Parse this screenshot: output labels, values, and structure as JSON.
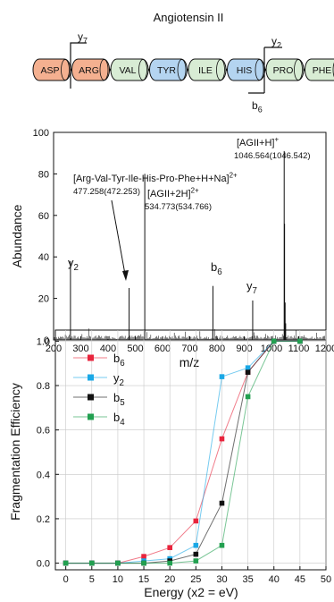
{
  "peptide": {
    "title": "Angiotensin II",
    "residues": [
      {
        "label": "ASP",
        "color": "#f4b090"
      },
      {
        "label": "ARG",
        "color": "#f4b090"
      },
      {
        "label": "VAL",
        "color": "#d8ecd4"
      },
      {
        "label": "TYR",
        "color": "#b4d4f0"
      },
      {
        "label": "ILE",
        "color": "#d8ecd4"
      },
      {
        "label": "HIS",
        "color": "#b4d4f0"
      },
      {
        "label": "PRO",
        "color": "#d8ecd4"
      },
      {
        "label": "PHE",
        "color": "#d8ecd4"
      }
    ],
    "fragments": [
      {
        "label": "y",
        "sub": "7"
      },
      {
        "label": "y",
        "sub": "2"
      },
      {
        "label": "b",
        "sub": "6"
      }
    ]
  },
  "chart_data": [
    {
      "type": "bar",
      "xlabel": "m/z",
      "ylabel": "Abundance",
      "xlim": [
        200,
        1200
      ],
      "ylim": [
        0,
        100
      ],
      "xticks": [
        200,
        300,
        400,
        500,
        600,
        700,
        800,
        900,
        1000,
        1100,
        1200
      ],
      "yticks": [
        0,
        20,
        40,
        60,
        80,
        100
      ],
      "peaks": [
        {
          "mz": 262,
          "abundance": 38
        },
        {
          "mz": 477.3,
          "abundance": 25
        },
        {
          "mz": 534.8,
          "abundance": 80
        },
        {
          "mz": 785,
          "abundance": 26
        },
        {
          "mz": 931,
          "abundance": 19
        },
        {
          "mz": 1046.6,
          "abundance": 91
        },
        {
          "mz": 1048,
          "abundance": 56
        },
        {
          "mz": 1050,
          "abundance": 18
        },
        {
          "mz": 1052,
          "abundance": 8
        }
      ],
      "annotations": [
        {
          "text": "[AGII+H]",
          "sup": "+",
          "value": "1046.564(1046.542)"
        },
        {
          "text": "[Arg-Val-Tyr-Ile-His-Pro-Phe+H+Na]",
          "sup": "2+",
          "value": "477.258(472.253)"
        },
        {
          "text": "[AGII+2H]",
          "sup": "2+",
          "value": "534.773(534.766)"
        },
        {
          "text": "y",
          "sub": "2"
        },
        {
          "text": "b",
          "sub": "6"
        },
        {
          "text": "y",
          "sub": "7"
        }
      ]
    },
    {
      "type": "line",
      "xlabel": "Energy (x2 = eV)",
      "ylabel": "Fragmentation Efficiency",
      "xlim": [
        -2,
        50
      ],
      "ylim": [
        -0.03,
        1.05
      ],
      "xticks": [
        0,
        5,
        10,
        15,
        20,
        25,
        30,
        35,
        40,
        45,
        50
      ],
      "yticks": [
        0.0,
        0.2,
        0.4,
        0.6,
        0.8,
        1.0
      ],
      "x": [
        0,
        5,
        10,
        15,
        20,
        25,
        30,
        35,
        40,
        45
      ],
      "series": [
        {
          "name": "b",
          "sub": "6",
          "color": "#e8243c",
          "values": [
            0,
            0,
            0,
            0.03,
            0.07,
            0.19,
            0.56,
            0.86,
            1.0,
            1.0
          ]
        },
        {
          "name": "y",
          "sub": "2",
          "color": "#1aa8e6",
          "values": [
            0,
            0,
            0,
            0.01,
            0.02,
            0.08,
            0.84,
            0.88,
            1.0,
            1.0
          ]
        },
        {
          "name": "b",
          "sub": "5",
          "color": "#111111",
          "values": [
            0,
            0,
            0,
            0,
            0.01,
            0.04,
            0.27,
            0.86,
            1.0,
            1.0
          ]
        },
        {
          "name": "b",
          "sub": "4",
          "color": "#22a050",
          "values": [
            0,
            0,
            0,
            0,
            0,
            0.01,
            0.08,
            0.75,
            1.0,
            1.0
          ]
        }
      ]
    }
  ]
}
